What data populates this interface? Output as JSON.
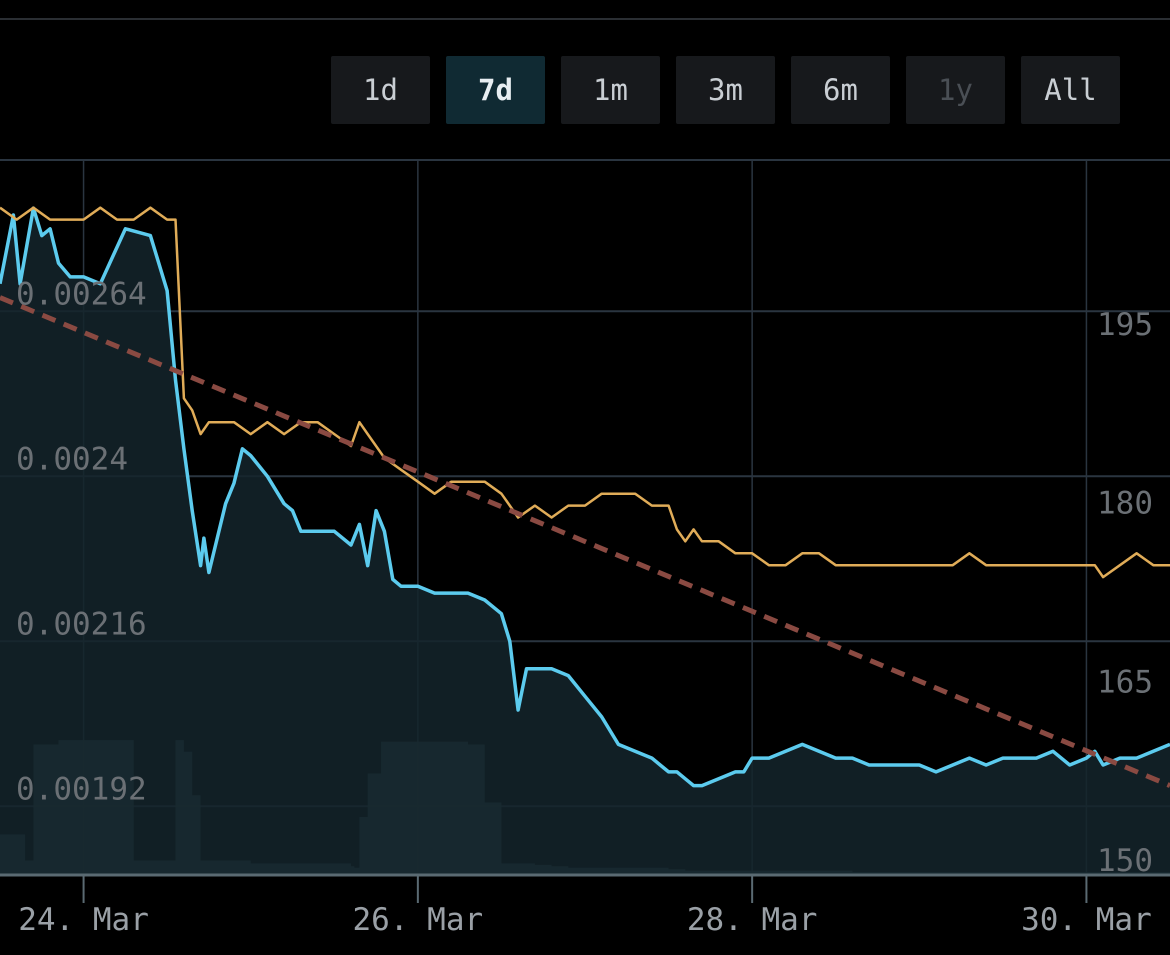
{
  "range_selector": {
    "buttons": [
      {
        "label": "1d",
        "state": "normal"
      },
      {
        "label": "7d",
        "state": "active"
      },
      {
        "label": "1m",
        "state": "normal"
      },
      {
        "label": "3m",
        "state": "normal"
      },
      {
        "label": "6m",
        "state": "normal"
      },
      {
        "label": "1y",
        "state": "disabled"
      },
      {
        "label": "All",
        "state": "normal"
      }
    ]
  },
  "colors": {
    "background": "#000000",
    "primary_line": "#5ccbee",
    "primary_fill": "#14252c",
    "secondary_line": "#e0ac58",
    "trend_line": "#8a4a42",
    "volume": "#2e4448",
    "grid": "#2a3540",
    "button_bg": "#17191c",
    "button_active_bg": "#102a33"
  },
  "chart_data": {
    "type": "line",
    "x_unit": "days (Mar, year not shown)",
    "x_tick_labels": [
      "24. Mar",
      "26. Mar",
      "28. Mar",
      "30. Mar"
    ],
    "x_tick_values": [
      24,
      26,
      28,
      30
    ],
    "xlim": [
      23.5,
      30.5
    ],
    "left_axis": {
      "tick_labels": [
        "0.00264",
        "0.0024",
        "0.00216",
        "0.00192"
      ],
      "ticks": [
        0.00264,
        0.0024,
        0.00216,
        0.00192
      ],
      "ylim": [
        0.00182,
        0.00286
      ]
    },
    "right_axis": {
      "tick_labels": [
        "195",
        "180",
        "165",
        "150"
      ],
      "ticks": [
        195,
        180,
        165,
        150
      ],
      "ylim": [
        150,
        210
      ]
    },
    "series": [
      {
        "axis": "left",
        "style": "area",
        "x": [
          23.5,
          23.58,
          23.62,
          23.7,
          23.75,
          23.8,
          23.85,
          23.92,
          24.0,
          24.1,
          24.25,
          24.4,
          24.5,
          24.55,
          24.6,
          24.65,
          24.7,
          24.72,
          24.75,
          24.85,
          24.9,
          24.95,
          25.0,
          25.1,
          25.2,
          25.25,
          25.3,
          25.5,
          25.6,
          25.65,
          25.7,
          25.75,
          25.8,
          25.85,
          25.9,
          26.0,
          26.1,
          26.2,
          26.3,
          26.4,
          26.5,
          26.55,
          26.6,
          26.65,
          26.7,
          26.8,
          26.9,
          27.0,
          27.1,
          27.2,
          27.3,
          27.4,
          27.45,
          27.5,
          27.55,
          27.6,
          27.65,
          27.7,
          27.8,
          27.9,
          27.95,
          28.0,
          28.1,
          28.2,
          28.3,
          28.4,
          28.5,
          28.6,
          28.7,
          28.8,
          28.9,
          29.0,
          29.1,
          29.2,
          29.3,
          29.4,
          29.5,
          29.6,
          29.7,
          29.8,
          29.9,
          30.0,
          30.05,
          30.1,
          30.2,
          30.3,
          30.4,
          30.5
        ],
        "values": [
          0.00268,
          0.00278,
          0.00268,
          0.00279,
          0.00275,
          0.00276,
          0.00271,
          0.00269,
          0.00269,
          0.00268,
          0.00276,
          0.00275,
          0.00267,
          0.00254,
          0.00244,
          0.00235,
          0.00227,
          0.00231,
          0.00226,
          0.00236,
          0.00239,
          0.00244,
          0.00243,
          0.0024,
          0.00236,
          0.00235,
          0.00232,
          0.00232,
          0.0023,
          0.00233,
          0.00227,
          0.00235,
          0.00232,
          0.00225,
          0.00224,
          0.00224,
          0.00223,
          0.00223,
          0.00223,
          0.00222,
          0.0022,
          0.00216,
          0.00206,
          0.00212,
          0.00212,
          0.00212,
          0.00211,
          0.00208,
          0.00205,
          0.00201,
          0.002,
          0.00199,
          0.00198,
          0.00197,
          0.00197,
          0.00196,
          0.00195,
          0.00195,
          0.00196,
          0.00197,
          0.00197,
          0.00199,
          0.00199,
          0.002,
          0.00201,
          0.002,
          0.00199,
          0.00199,
          0.00198,
          0.00198,
          0.00198,
          0.00198,
          0.00197,
          0.00198,
          0.00199,
          0.00198,
          0.00199,
          0.00199,
          0.00199,
          0.002,
          0.00198,
          0.00199,
          0.002,
          0.00198,
          0.00199,
          0.00199,
          0.002,
          0.00201
        ]
      },
      {
        "axis": "right",
        "style": "line",
        "x": [
          23.5,
          23.6,
          23.7,
          23.8,
          23.9,
          24.0,
          24.1,
          24.2,
          24.3,
          24.4,
          24.5,
          24.55,
          24.6,
          24.65,
          24.7,
          24.75,
          24.8,
          24.9,
          25.0,
          25.1,
          25.2,
          25.3,
          25.4,
          25.5,
          25.6,
          25.65,
          25.7,
          25.8,
          25.9,
          26.0,
          26.1,
          26.2,
          26.3,
          26.4,
          26.5,
          26.55,
          26.6,
          26.7,
          26.8,
          26.9,
          27.0,
          27.1,
          27.2,
          27.3,
          27.4,
          27.5,
          27.55,
          27.6,
          27.65,
          27.7,
          27.8,
          27.9,
          28.0,
          28.1,
          28.2,
          28.3,
          28.4,
          28.5,
          28.6,
          28.7,
          28.8,
          28.9,
          29.0,
          29.1,
          29.2,
          29.3,
          29.4,
          29.5,
          29.6,
          29.7,
          29.8,
          29.9,
          30.0,
          30.05,
          30.1,
          30.2,
          30.3,
          30.4,
          30.5
        ],
        "values": [
          206,
          205,
          206,
          205,
          205,
          205,
          206,
          205,
          205,
          206,
          205,
          205,
          190,
          189,
          187,
          188,
          188,
          188,
          187,
          188,
          187,
          188,
          188,
          187,
          186,
          188,
          187,
          185,
          184,
          183,
          182,
          183,
          183,
          183,
          182,
          181,
          180,
          181,
          180,
          181,
          181,
          182,
          182,
          182,
          181,
          181,
          179,
          178,
          179,
          178,
          178,
          177,
          177,
          176,
          176,
          177,
          177,
          176,
          176,
          176,
          176,
          176,
          176,
          176,
          176,
          177,
          176,
          176,
          176,
          176,
          176,
          176,
          176,
          176,
          175,
          176,
          177,
          176,
          176
        ]
      }
    ],
    "trend_line": {
      "axis": "left",
      "style": "dashed",
      "x": [
        23.5,
        30.5
      ],
      "values": [
        0.00266,
        0.00195
      ]
    },
    "volume": {
      "x": [
        23.5,
        23.65,
        23.7,
        23.8,
        23.85,
        24.25,
        24.3,
        24.55,
        24.6,
        24.65,
        24.7,
        24.9,
        25.0,
        25.5,
        25.6,
        25.62,
        25.65,
        25.7,
        25.78,
        25.8,
        26.2,
        26.3,
        26.4,
        26.5,
        26.6,
        26.7,
        26.8,
        26.9,
        27.0,
        27.5,
        27.6,
        27.7,
        28.0,
        28.3,
        28.6,
        29.0,
        29.5,
        30.0,
        30.5
      ],
      "values": [
        0.28,
        0.1,
        0.9,
        0.9,
        0.93,
        0.93,
        0.1,
        0.93,
        0.85,
        0.55,
        0.1,
        0.1,
        0.08,
        0.08,
        0.06,
        0.05,
        0.4,
        0.7,
        0.92,
        0.92,
        0.92,
        0.9,
        0.5,
        0.08,
        0.08,
        0.07,
        0.06,
        0.05,
        0.05,
        0.04,
        0.03,
        0.03,
        0.03,
        0.03,
        0.02,
        0.02,
        0.02,
        0.02,
        0.02
      ]
    },
    "grid": true,
    "legend": "none"
  }
}
